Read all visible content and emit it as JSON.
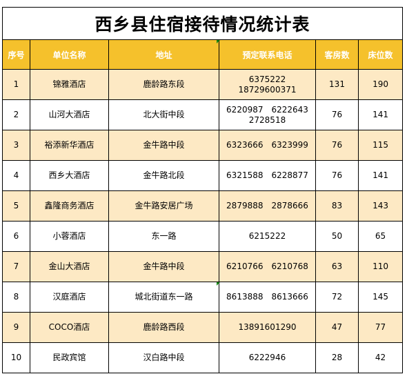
{
  "title": "西乡县住宿接待情况统计表",
  "headers": [
    "序号",
    "单位名称",
    "地址",
    "预定联系电话",
    "客房数",
    "床位数"
  ],
  "rows": [
    {
      "no": "1",
      "name": "锦雅酒店",
      "address": "鹿龄路东段",
      "phone_lines": [
        "6375222",
        "18729600371"
      ],
      "rooms": "131",
      "beds": "190"
    },
    {
      "no": "2",
      "name": "山河大酒店",
      "address": "北大街中段",
      "phone_lines": [
        "6220987　6222643",
        "2728518"
      ],
      "rooms": "76",
      "beds": "141"
    },
    {
      "no": "3",
      "name": "裕添新华酒店",
      "address": "金牛路中段",
      "phone_lines": [
        "6323666　6323999"
      ],
      "rooms": "76",
      "beds": "115"
    },
    {
      "no": "4",
      "name": "西乡大酒店",
      "address": "金牛路北段",
      "phone_lines": [
        "6321588　6228877"
      ],
      "rooms": "76",
      "beds": "141"
    },
    {
      "no": "5",
      "name": "鑫隆商务酒店",
      "address": "金牛路安居广场",
      "phone_lines": [
        "2879888　2878666"
      ],
      "rooms": "83",
      "beds": "143"
    },
    {
      "no": "6",
      "name": "小蓉酒店",
      "address": "东一路",
      "phone_lines": [
        "6215222"
      ],
      "rooms": "50",
      "beds": "65"
    },
    {
      "no": "7",
      "name": "金山大酒店",
      "address": "金牛路中段",
      "phone_lines": [
        "6210766　6210768"
      ],
      "rooms": "63",
      "beds": "110"
    },
    {
      "no": "8",
      "name": "汉庭酒店",
      "address": "城北街道东一路",
      "phone_lines": [
        "8613888　8613666"
      ],
      "rooms": "72",
      "beds": "145"
    },
    {
      "no": "9",
      "name": "COCO酒店",
      "address": "鹿龄路西段",
      "phone_lines": [
        "13891601290"
      ],
      "rooms": "47",
      "beds": "77"
    },
    {
      "no": "10",
      "name": "民政宾馆",
      "address": "汉白路中段",
      "phone_lines": [
        "6222946"
      ],
      "rooms": "28",
      "beds": "42"
    }
  ]
}
